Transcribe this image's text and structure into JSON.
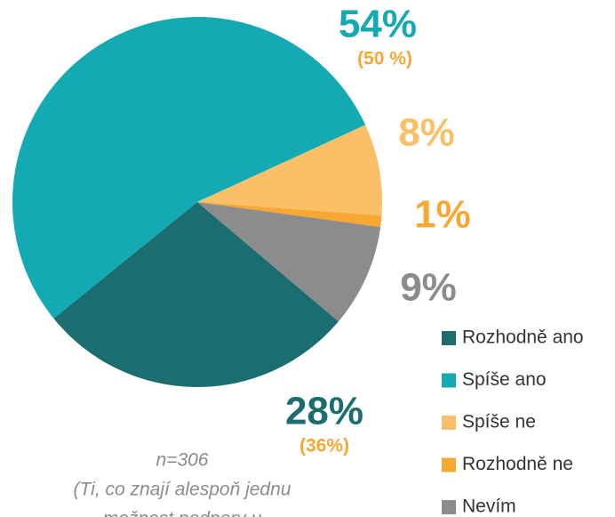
{
  "chart_data": {
    "type": "pie",
    "categories": [
      "Rozhodně ano",
      "Spíše ano",
      "Spíše ne",
      "Rozhodně ne",
      "Nevím"
    ],
    "values": [
      28,
      54,
      8,
      1,
      9
    ],
    "value_labels": [
      "28%",
      "54%",
      "8%",
      "1%",
      "9%"
    ],
    "previous_values": [
      36,
      50,
      null,
      null,
      null
    ],
    "previous_value_labels": [
      "(36%)",
      "(50 %)",
      null,
      null,
      null
    ],
    "colors": [
      "#1b6d70",
      "#14aab4",
      "#fbc067",
      "#f7a833",
      "#8c8c8c"
    ],
    "legend": "right",
    "notes": [
      "n=306",
      "(Ti, co znají alespoň jednu",
      "možnost podpory u"
    ]
  }
}
